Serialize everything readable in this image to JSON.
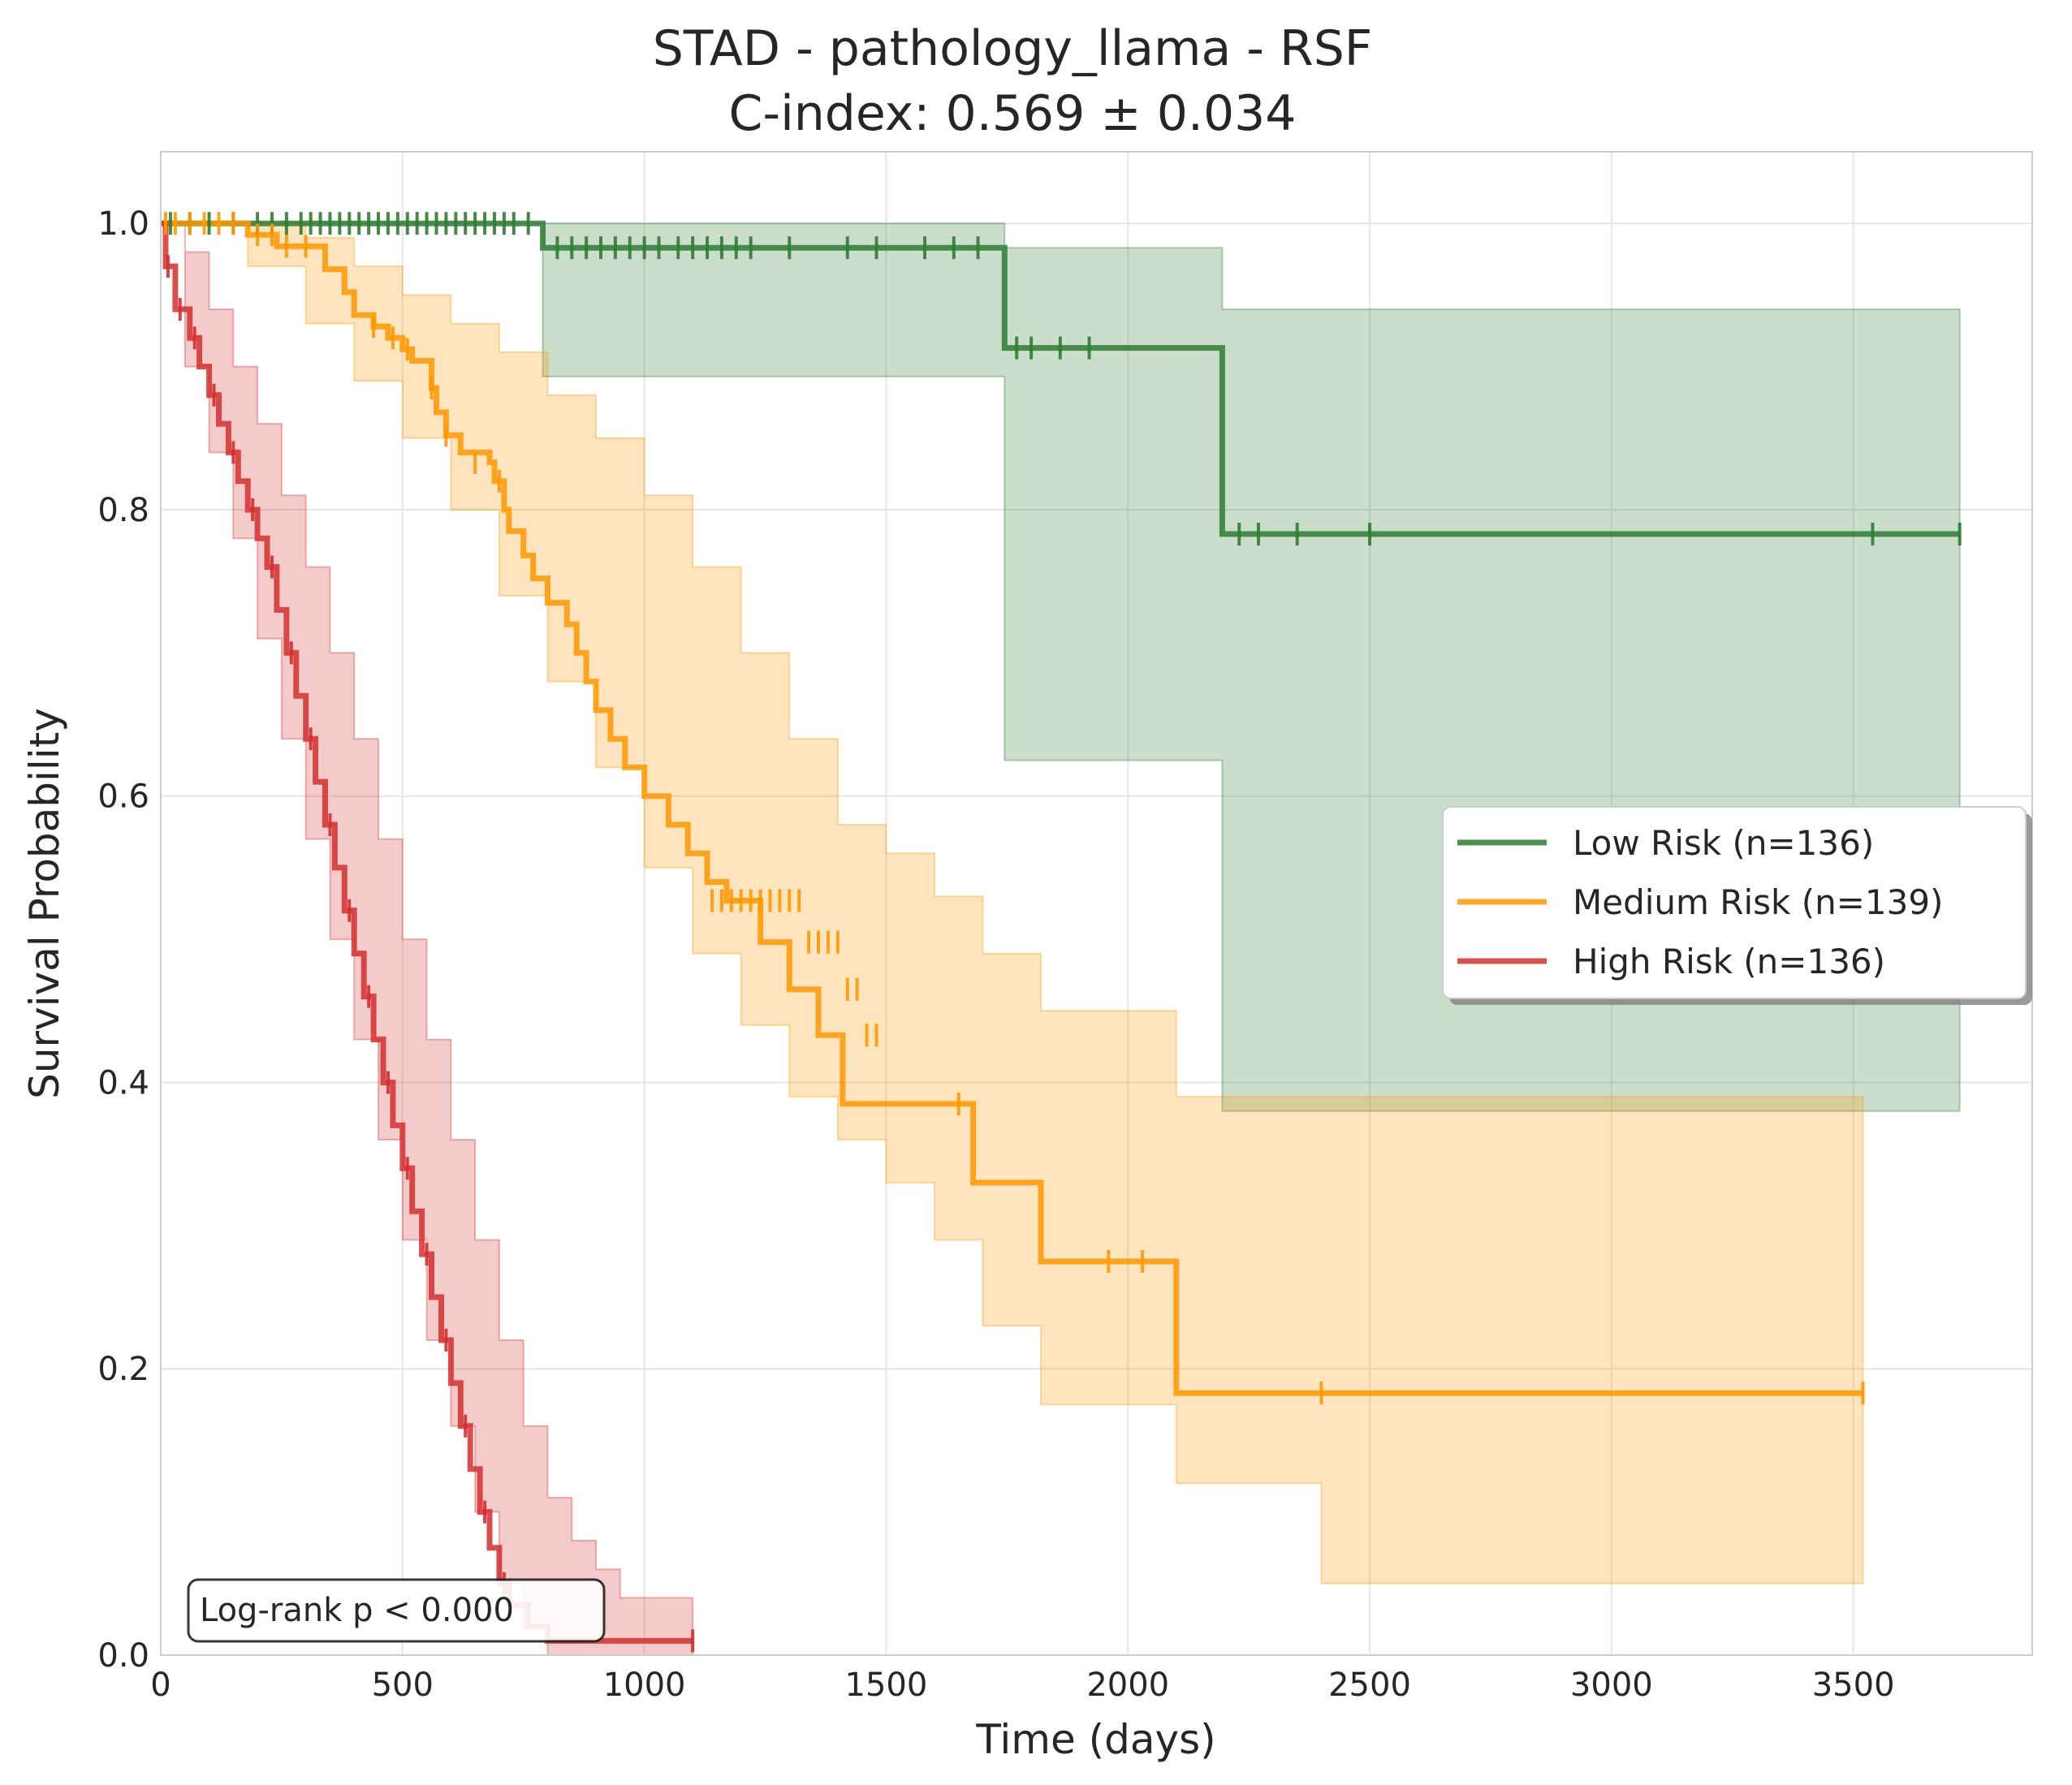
{
  "chart_data": {
    "type": "line",
    "subtype": "kaplan-meier",
    "title": "STAD - pathology_llama - RSF",
    "subtitle": "C-index: 0.569 ± 0.034",
    "xlabel": "Time (days)",
    "ylabel": "Survival Probability",
    "xlim": [
      0,
      3870
    ],
    "ylim": [
      0,
      1.05
    ],
    "xticks": [
      0,
      500,
      1000,
      1500,
      2000,
      2500,
      3000,
      3500
    ],
    "xtick_labels": [
      "0",
      "500",
      "1000",
      "1500",
      "2000",
      "2500",
      "3000",
      "3500"
    ],
    "yticks": [
      0.0,
      0.2,
      0.4,
      0.6,
      0.8,
      1.0
    ],
    "ytick_labels": [
      "0.0",
      "0.2",
      "0.4",
      "0.6",
      "0.8",
      "1.0"
    ],
    "grid": true,
    "legend_position": "center-right",
    "annotation": "Log-rank p < 0.000",
    "series": [
      {
        "name": "Low Risk (n=136)",
        "color": "#2e7d32",
        "steps": [
          [
            0,
            1.0
          ],
          [
            790,
            0.983
          ],
          [
            1745,
            0.913
          ],
          [
            2195,
            0.783
          ],
          [
            3720,
            0.783
          ]
        ],
        "ci_upper": [
          [
            0,
            1.0
          ],
          [
            790,
            1.0
          ],
          [
            1745,
            0.983
          ],
          [
            2195,
            0.94
          ],
          [
            3720,
            0.94
          ]
        ],
        "ci_lower": [
          [
            0,
            1.0
          ],
          [
            790,
            0.893
          ],
          [
            1745,
            0.625
          ],
          [
            2195,
            0.38
          ],
          [
            3720,
            0.38
          ]
        ],
        "censors": [
          [
            20,
            1.0
          ],
          [
            60,
            1.0
          ],
          [
            100,
            1.0
          ],
          [
            150,
            1.0
          ],
          [
            200,
            1.0
          ],
          [
            230,
            1.0
          ],
          [
            260,
            1.0
          ],
          [
            290,
            1.0
          ],
          [
            310,
            1.0
          ],
          [
            330,
            1.0
          ],
          [
            350,
            1.0
          ],
          [
            370,
            1.0
          ],
          [
            390,
            1.0
          ],
          [
            410,
            1.0
          ],
          [
            430,
            1.0
          ],
          [
            450,
            1.0
          ],
          [
            470,
            1.0
          ],
          [
            490,
            1.0
          ],
          [
            510,
            1.0
          ],
          [
            530,
            1.0
          ],
          [
            550,
            1.0
          ],
          [
            570,
            1.0
          ],
          [
            590,
            1.0
          ],
          [
            610,
            1.0
          ],
          [
            630,
            1.0
          ],
          [
            650,
            1.0
          ],
          [
            670,
            1.0
          ],
          [
            690,
            1.0
          ],
          [
            710,
            1.0
          ],
          [
            730,
            1.0
          ],
          [
            760,
            1.0
          ],
          [
            820,
            0.983
          ],
          [
            850,
            0.983
          ],
          [
            880,
            0.983
          ],
          [
            910,
            0.983
          ],
          [
            940,
            0.983
          ],
          [
            970,
            0.983
          ],
          [
            1000,
            0.983
          ],
          [
            1030,
            0.983
          ],
          [
            1070,
            0.983
          ],
          [
            1100,
            0.983
          ],
          [
            1130,
            0.983
          ],
          [
            1160,
            0.983
          ],
          [
            1190,
            0.983
          ],
          [
            1220,
            0.983
          ],
          [
            1300,
            0.983
          ],
          [
            1420,
            0.983
          ],
          [
            1480,
            0.983
          ],
          [
            1580,
            0.983
          ],
          [
            1640,
            0.983
          ],
          [
            1690,
            0.983
          ],
          [
            1770,
            0.913
          ],
          [
            1800,
            0.913
          ],
          [
            1860,
            0.913
          ],
          [
            1920,
            0.913
          ],
          [
            2230,
            0.783
          ],
          [
            2270,
            0.783
          ],
          [
            2350,
            0.783
          ],
          [
            2500,
            0.783
          ],
          [
            3540,
            0.783
          ],
          [
            3720,
            0.783
          ]
        ]
      },
      {
        "name": "Medium Risk (n=139)",
        "color": "#ff9800",
        "steps": [
          [
            0,
            1.0
          ],
          [
            180,
            0.992
          ],
          [
            240,
            0.984
          ],
          [
            340,
            0.968
          ],
          [
            380,
            0.952
          ],
          [
            400,
            0.936
          ],
          [
            440,
            0.928
          ],
          [
            470,
            0.92
          ],
          [
            500,
            0.912
          ],
          [
            520,
            0.904
          ],
          [
            560,
            0.885
          ],
          [
            570,
            0.868
          ],
          [
            590,
            0.852
          ],
          [
            620,
            0.84
          ],
          [
            680,
            0.833
          ],
          [
            690,
            0.82
          ],
          [
            710,
            0.8
          ],
          [
            720,
            0.785
          ],
          [
            750,
            0.768
          ],
          [
            770,
            0.752
          ],
          [
            800,
            0.735
          ],
          [
            840,
            0.72
          ],
          [
            860,
            0.7
          ],
          [
            880,
            0.68
          ],
          [
            900,
            0.66
          ],
          [
            930,
            0.64
          ],
          [
            960,
            0.62
          ],
          [
            1000,
            0.6
          ],
          [
            1050,
            0.58
          ],
          [
            1090,
            0.56
          ],
          [
            1130,
            0.54
          ],
          [
            1170,
            0.527
          ],
          [
            1240,
            0.498
          ],
          [
            1300,
            0.465
          ],
          [
            1360,
            0.433
          ],
          [
            1410,
            0.385
          ],
          [
            1680,
            0.33
          ],
          [
            1820,
            0.275
          ],
          [
            2100,
            0.183
          ],
          [
            3520,
            0.183
          ]
        ],
        "ci_upper": [
          [
            0,
            1.0
          ],
          [
            180,
            1.0
          ],
          [
            300,
            0.99
          ],
          [
            400,
            0.97
          ],
          [
            500,
            0.95
          ],
          [
            600,
            0.93
          ],
          [
            700,
            0.91
          ],
          [
            800,
            0.88
          ],
          [
            900,
            0.85
          ],
          [
            1000,
            0.81
          ],
          [
            1100,
            0.76
          ],
          [
            1200,
            0.7
          ],
          [
            1300,
            0.64
          ],
          [
            1400,
            0.58
          ],
          [
            1500,
            0.56
          ],
          [
            1600,
            0.53
          ],
          [
            1700,
            0.49
          ],
          [
            1820,
            0.45
          ],
          [
            2100,
            0.39
          ],
          [
            3520,
            0.39
          ]
        ],
        "ci_lower": [
          [
            0,
            1.0
          ],
          [
            180,
            0.97
          ],
          [
            300,
            0.93
          ],
          [
            400,
            0.89
          ],
          [
            500,
            0.85
          ],
          [
            600,
            0.8
          ],
          [
            700,
            0.74
          ],
          [
            800,
            0.68
          ],
          [
            900,
            0.62
          ],
          [
            1000,
            0.55
          ],
          [
            1100,
            0.49
          ],
          [
            1200,
            0.44
          ],
          [
            1300,
            0.39
          ],
          [
            1400,
            0.36
          ],
          [
            1500,
            0.33
          ],
          [
            1600,
            0.29
          ],
          [
            1700,
            0.23
          ],
          [
            1820,
            0.175
          ],
          [
            2100,
            0.12
          ],
          [
            2400,
            0.05
          ],
          [
            3520,
            0.05
          ]
        ],
        "censors": [
          [
            10,
            1.0
          ],
          [
            30,
            1.0
          ],
          [
            60,
            1.0
          ],
          [
            90,
            1.0
          ],
          [
            120,
            1.0
          ],
          [
            150,
            1.0
          ],
          [
            200,
            0.992
          ],
          [
            230,
            0.992
          ],
          [
            260,
            0.984
          ],
          [
            300,
            0.984
          ],
          [
            440,
            0.928
          ],
          [
            480,
            0.92
          ],
          [
            510,
            0.912
          ],
          [
            560,
            0.885
          ],
          [
            590,
            0.852
          ],
          [
            650,
            0.833
          ],
          [
            700,
            0.82
          ],
          [
            1140,
            0.527
          ],
          [
            1160,
            0.527
          ],
          [
            1180,
            0.527
          ],
          [
            1200,
            0.527
          ],
          [
            1220,
            0.527
          ],
          [
            1240,
            0.527
          ],
          [
            1260,
            0.527
          ],
          [
            1280,
            0.527
          ],
          [
            1300,
            0.527
          ],
          [
            1320,
            0.527
          ],
          [
            1340,
            0.498
          ],
          [
            1360,
            0.498
          ],
          [
            1380,
            0.498
          ],
          [
            1400,
            0.498
          ],
          [
            1420,
            0.465
          ],
          [
            1440,
            0.465
          ],
          [
            1460,
            0.433
          ],
          [
            1480,
            0.433
          ],
          [
            1650,
            0.385
          ],
          [
            1960,
            0.275
          ],
          [
            2030,
            0.275
          ],
          [
            2400,
            0.183
          ],
          [
            3520,
            0.183
          ]
        ]
      },
      {
        "name": "High Risk (n=136)",
        "color": "#d32f2f",
        "steps": [
          [
            0,
            1.0
          ],
          [
            10,
            0.97
          ],
          [
            30,
            0.94
          ],
          [
            60,
            0.92
          ],
          [
            80,
            0.9
          ],
          [
            100,
            0.88
          ],
          [
            120,
            0.86
          ],
          [
            140,
            0.84
          ],
          [
            160,
            0.82
          ],
          [
            180,
            0.8
          ],
          [
            200,
            0.78
          ],
          [
            220,
            0.76
          ],
          [
            240,
            0.73
          ],
          [
            260,
            0.7
          ],
          [
            280,
            0.67
          ],
          [
            300,
            0.64
          ],
          [
            320,
            0.61
          ],
          [
            340,
            0.58
          ],
          [
            360,
            0.55
          ],
          [
            380,
            0.52
          ],
          [
            400,
            0.49
          ],
          [
            420,
            0.46
          ],
          [
            440,
            0.43
          ],
          [
            460,
            0.4
          ],
          [
            480,
            0.37
          ],
          [
            500,
            0.34
          ],
          [
            520,
            0.31
          ],
          [
            540,
            0.28
          ],
          [
            560,
            0.25
          ],
          [
            580,
            0.22
          ],
          [
            600,
            0.19
          ],
          [
            620,
            0.16
          ],
          [
            640,
            0.13
          ],
          [
            660,
            0.1
          ],
          [
            680,
            0.075
          ],
          [
            700,
            0.05
          ],
          [
            720,
            0.035
          ],
          [
            760,
            0.02
          ],
          [
            800,
            0.01
          ],
          [
            1100,
            0.01
          ]
        ],
        "ci_upper": [
          [
            0,
            1.0
          ],
          [
            50,
            0.98
          ],
          [
            100,
            0.94
          ],
          [
            150,
            0.9
          ],
          [
            200,
            0.86
          ],
          [
            250,
            0.81
          ],
          [
            300,
            0.76
          ],
          [
            350,
            0.7
          ],
          [
            400,
            0.64
          ],
          [
            450,
            0.57
          ],
          [
            500,
            0.5
          ],
          [
            550,
            0.43
          ],
          [
            600,
            0.36
          ],
          [
            650,
            0.29
          ],
          [
            700,
            0.22
          ],
          [
            750,
            0.16
          ],
          [
            800,
            0.11
          ],
          [
            850,
            0.08
          ],
          [
            900,
            0.06
          ],
          [
            950,
            0.04
          ],
          [
            1100,
            0.04
          ]
        ],
        "ci_lower": [
          [
            0,
            1.0
          ],
          [
            50,
            0.9
          ],
          [
            100,
            0.84
          ],
          [
            150,
            0.78
          ],
          [
            200,
            0.71
          ],
          [
            250,
            0.64
          ],
          [
            300,
            0.57
          ],
          [
            350,
            0.5
          ],
          [
            400,
            0.43
          ],
          [
            450,
            0.36
          ],
          [
            500,
            0.29
          ],
          [
            550,
            0.22
          ],
          [
            600,
            0.16
          ],
          [
            650,
            0.1
          ],
          [
            700,
            0.05
          ],
          [
            750,
            0.02
          ],
          [
            800,
            0.0
          ],
          [
            1100,
            0.0
          ]
        ],
        "censors": [
          [
            15,
            0.97
          ],
          [
            40,
            0.94
          ],
          [
            70,
            0.92
          ],
          [
            110,
            0.88
          ],
          [
            150,
            0.84
          ],
          [
            190,
            0.8
          ],
          [
            230,
            0.76
          ],
          [
            270,
            0.7
          ],
          [
            310,
            0.64
          ],
          [
            350,
            0.58
          ],
          [
            390,
            0.52
          ],
          [
            430,
            0.46
          ],
          [
            470,
            0.4
          ],
          [
            510,
            0.34
          ],
          [
            550,
            0.28
          ],
          [
            590,
            0.22
          ],
          [
            630,
            0.16
          ],
          [
            670,
            0.1
          ],
          [
            710,
            0.05
          ],
          [
            1100,
            0.01
          ]
        ]
      }
    ]
  }
}
